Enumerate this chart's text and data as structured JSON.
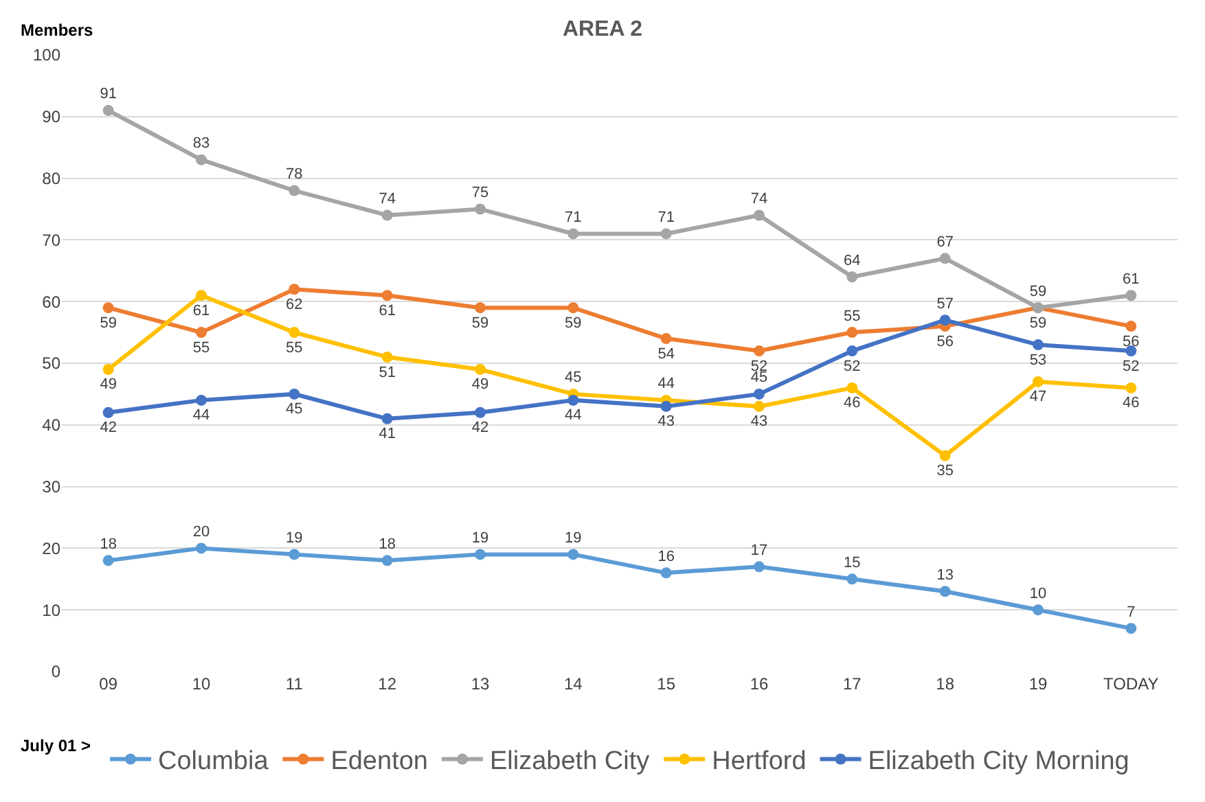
{
  "chart_data": {
    "type": "line",
    "title": "AREA 2",
    "ylabel": "Members",
    "xlabel": "July 01 >",
    "categories": [
      "09",
      "10",
      "11",
      "12",
      "13",
      "14",
      "15",
      "16",
      "17",
      "18",
      "19",
      "TODAY"
    ],
    "series": [
      {
        "name": "Columbia",
        "color": "#5b9bd5",
        "values": [
          18,
          20,
          19,
          18,
          19,
          19,
          16,
          17,
          15,
          13,
          10,
          7
        ]
      },
      {
        "name": "Edenton",
        "color": "#ed7d31",
        "values": [
          59,
          55,
          62,
          61,
          59,
          59,
          54,
          52,
          55,
          56,
          59,
          56
        ]
      },
      {
        "name": "Elizabeth City",
        "color": "#a5a5a5",
        "values": [
          91,
          83,
          78,
          74,
          75,
          71,
          71,
          74,
          64,
          67,
          59,
          61
        ]
      },
      {
        "name": "Hertford",
        "color": "#ffc000",
        "values": [
          49,
          61,
          55,
          51,
          49,
          45,
          44,
          43,
          46,
          35,
          47,
          46
        ]
      },
      {
        "name": "Elizabeth City Morning",
        "color": "#4472c4",
        "values": [
          42,
          44,
          45,
          41,
          42,
          44,
          43,
          45,
          52,
          57,
          53,
          52
        ]
      }
    ],
    "ylim": [
      0,
      100
    ],
    "yticks": [
      0,
      10,
      20,
      30,
      40,
      50,
      60,
      70,
      80,
      90,
      100
    ],
    "grid": "y",
    "legend": "bottom",
    "marker": "circle",
    "line_style": "solid",
    "data_labels": true
  }
}
